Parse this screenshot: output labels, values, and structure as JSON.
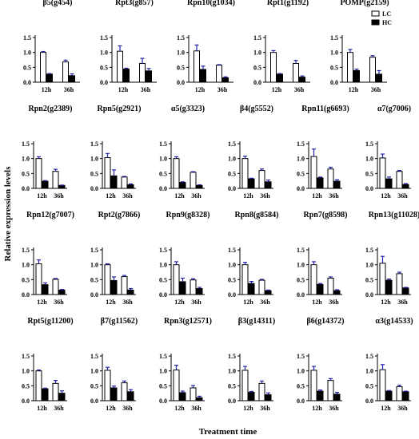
{
  "figure": {
    "ylabel": "Relative expression levels",
    "xlabel": "Treatment time",
    "legend": {
      "placement": "top-right",
      "items": [
        "LC",
        "HC"
      ]
    },
    "colors": {
      "LC": "#ffffff",
      "HC": "#000000",
      "error_bar": "#2222aa",
      "axis": "#000000"
    }
  },
  "chart_data": [
    {
      "type": "bar",
      "title": "β5(g454)",
      "categories": [
        "12h",
        "36h"
      ],
      "ylim": [
        0,
        1.5
      ],
      "yticks": [
        "0.0",
        "0.5",
        "1.0",
        "1.5"
      ],
      "series": [
        {
          "name": "LC",
          "values": [
            1.0,
            0.68
          ],
          "errors": [
            0.03,
            0.06
          ]
        },
        {
          "name": "HC",
          "values": [
            0.27,
            0.22
          ],
          "errors": [
            0.02,
            0.06
          ]
        }
      ]
    },
    {
      "type": "bar",
      "title": "Rpt3(g857)",
      "categories": [
        "12h",
        "36h"
      ],
      "ylim": [
        0,
        1.5
      ],
      "yticks": [
        "0.0",
        "0.5",
        "1.0",
        "1.5"
      ],
      "series": [
        {
          "name": "LC",
          "values": [
            1.04,
            0.63
          ],
          "errors": [
            0.18,
            0.17
          ]
        },
        {
          "name": "HC",
          "values": [
            0.44,
            0.38
          ],
          "errors": [
            0.03,
            0.08
          ]
        }
      ]
    },
    {
      "type": "bar",
      "title": "Rpn10(g1034)",
      "categories": [
        "12h",
        "36h"
      ],
      "ylim": [
        0,
        1.5
      ],
      "yticks": [
        "0.0",
        "0.5",
        "1.0",
        "1.5"
      ],
      "series": [
        {
          "name": "LC",
          "values": [
            1.05,
            0.57
          ],
          "errors": [
            0.2,
            0.02
          ]
        },
        {
          "name": "HC",
          "values": [
            0.43,
            0.15
          ],
          "errors": [
            0.11,
            0.03
          ]
        }
      ]
    },
    {
      "type": "bar",
      "title": "Rpt1(g1192)",
      "categories": [
        "12h",
        "36h"
      ],
      "ylim": [
        0,
        1.5
      ],
      "yticks": [
        "0.0",
        "0.5",
        "1.0",
        "1.5"
      ],
      "series": [
        {
          "name": "LC",
          "values": [
            1.0,
            0.63
          ],
          "errors": [
            0.06,
            0.1
          ]
        },
        {
          "name": "HC",
          "values": [
            0.27,
            0.17
          ],
          "errors": [
            0.02,
            0.04
          ]
        }
      ]
    },
    {
      "type": "bar",
      "title": "POMP(g2159)",
      "categories": [
        "12h",
        "36h"
      ],
      "ylim": [
        0,
        1.5
      ],
      "yticks": [
        "0.0",
        "0.5",
        "1.0",
        "1.5"
      ],
      "series": [
        {
          "name": "LC",
          "values": [
            1.0,
            0.84
          ],
          "errors": [
            0.1,
            0.05
          ]
        },
        {
          "name": "HC",
          "values": [
            0.39,
            0.27
          ],
          "errors": [
            0.05,
            0.12
          ]
        }
      ]
    },
    {
      "type": "bar",
      "title": "Rpn2(g2389)",
      "categories": [
        "12h",
        "36h"
      ],
      "ylim": [
        0,
        1.5
      ],
      "yticks": [
        "0.0",
        "0.5",
        "1.0",
        "1.5"
      ],
      "series": [
        {
          "name": "LC",
          "values": [
            1.0,
            0.57
          ],
          "errors": [
            0.06,
            0.07
          ]
        },
        {
          "name": "HC",
          "values": [
            0.24,
            0.1
          ],
          "errors": [
            0.02,
            0.01
          ]
        }
      ]
    },
    {
      "type": "bar",
      "title": "Rpn5(g2921)",
      "categories": [
        "12h",
        "36h"
      ],
      "ylim": [
        0,
        1.5
      ],
      "yticks": [
        "0.0",
        "0.5",
        "1.0",
        "1.5"
      ],
      "series": [
        {
          "name": "LC",
          "values": [
            1.03,
            0.38
          ],
          "errors": [
            0.14,
            0.02
          ]
        },
        {
          "name": "HC",
          "values": [
            0.42,
            0.12
          ],
          "errors": [
            0.2,
            0.03
          ]
        }
      ]
    },
    {
      "type": "bar",
      "title": "α5(g3323)",
      "categories": [
        "12h",
        "36h"
      ],
      "ylim": [
        0,
        1.5
      ],
      "yticks": [
        "0.0",
        "0.5",
        "1.0",
        "1.5"
      ],
      "series": [
        {
          "name": "LC",
          "values": [
            1.0,
            0.54
          ],
          "errors": [
            0.06,
            0.02
          ]
        },
        {
          "name": "HC",
          "values": [
            0.2,
            0.1
          ],
          "errors": [
            0.02,
            0.02
          ]
        }
      ]
    },
    {
      "type": "bar",
      "title": "β4(g5552)",
      "categories": [
        "12h",
        "36h"
      ],
      "ylim": [
        0,
        1.5
      ],
      "yticks": [
        "0.0",
        "0.5",
        "1.0",
        "1.5"
      ],
      "series": [
        {
          "name": "LC",
          "values": [
            1.0,
            0.6
          ],
          "errors": [
            0.08,
            0.05
          ]
        },
        {
          "name": "HC",
          "values": [
            0.32,
            0.22
          ],
          "errors": [
            0.02,
            0.06
          ]
        }
      ]
    },
    {
      "type": "bar",
      "title": "Rpn11(g6693)",
      "categories": [
        "12h",
        "36h"
      ],
      "ylim": [
        0,
        1.5
      ],
      "yticks": [
        "0.0",
        "0.5",
        "1.0",
        "1.5"
      ],
      "series": [
        {
          "name": "LC",
          "values": [
            1.07,
            0.65
          ],
          "errors": [
            0.25,
            0.06
          ]
        },
        {
          "name": "HC",
          "values": [
            0.35,
            0.24
          ],
          "errors": [
            0.03,
            0.05
          ]
        }
      ]
    },
    {
      "type": "bar",
      "title": "α7(g7006)",
      "categories": [
        "12h",
        "36h"
      ],
      "ylim": [
        0,
        1.5
      ],
      "yticks": [
        "0.0",
        "0.5",
        "1.0",
        "1.5"
      ],
      "series": [
        {
          "name": "LC",
          "values": [
            1.02,
            0.57
          ],
          "errors": [
            0.13,
            0.03
          ]
        },
        {
          "name": "HC",
          "values": [
            0.32,
            0.13
          ],
          "errors": [
            0.06,
            0.03
          ]
        }
      ]
    },
    {
      "type": "bar",
      "title": "Rpn12(g7007)",
      "categories": [
        "12h",
        "36h"
      ],
      "ylim": [
        0,
        1.5
      ],
      "yticks": [
        "0.0",
        "0.5",
        "1.0",
        "1.5"
      ],
      "series": [
        {
          "name": "LC",
          "values": [
            1.03,
            0.51
          ],
          "errors": [
            0.13,
            0.03
          ]
        },
        {
          "name": "HC",
          "values": [
            0.33,
            0.15
          ],
          "errors": [
            0.06,
            0.02
          ]
        }
      ]
    },
    {
      "type": "bar",
      "title": "Rpt2(g7866)",
      "categories": [
        "12h",
        "36h"
      ],
      "ylim": [
        0,
        1.5
      ],
      "yticks": [
        "0.0",
        "0.5",
        "1.0",
        "1.5"
      ],
      "series": [
        {
          "name": "LC",
          "values": [
            1.0,
            0.6
          ],
          "errors": [
            0.03,
            0.04
          ]
        },
        {
          "name": "HC",
          "values": [
            0.47,
            0.15
          ],
          "errors": [
            0.12,
            0.05
          ]
        }
      ]
    },
    {
      "type": "bar",
      "title": "Rpn9(g8328)",
      "categories": [
        "12h",
        "36h"
      ],
      "ylim": [
        0,
        1.5
      ],
      "yticks": [
        "0.0",
        "0.5",
        "1.0",
        "1.5"
      ],
      "series": [
        {
          "name": "LC",
          "values": [
            1.0,
            0.49
          ],
          "errors": [
            0.1,
            0.04
          ]
        },
        {
          "name": "HC",
          "values": [
            0.43,
            0.2
          ],
          "errors": [
            0.12,
            0.04
          ]
        }
      ]
    },
    {
      "type": "bar",
      "title": "Rpn8(g8584)",
      "categories": [
        "12h",
        "36h"
      ],
      "ylim": [
        0,
        1.5
      ],
      "yticks": [
        "0.0",
        "0.5",
        "1.0",
        "1.5"
      ],
      "series": [
        {
          "name": "LC",
          "values": [
            1.0,
            0.48
          ],
          "errors": [
            0.08,
            0.03
          ]
        },
        {
          "name": "HC",
          "values": [
            0.37,
            0.13
          ],
          "errors": [
            0.07,
            0.02
          ]
        }
      ]
    },
    {
      "type": "bar",
      "title": "Rpn7(g8598)",
      "categories": [
        "12h",
        "36h"
      ],
      "ylim": [
        0,
        1.5
      ],
      "yticks": [
        "0.0",
        "0.5",
        "1.0",
        "1.5"
      ],
      "series": [
        {
          "name": "LC",
          "values": [
            1.0,
            0.55
          ],
          "errors": [
            0.1,
            0.04
          ]
        },
        {
          "name": "HC",
          "values": [
            0.34,
            0.13
          ],
          "errors": [
            0.03,
            0.03
          ]
        }
      ]
    },
    {
      "type": "bar",
      "title": "Rpn13(g11028)",
      "categories": [
        "12h",
        "36h"
      ],
      "ylim": [
        0,
        1.5
      ],
      "yticks": [
        "0.0",
        "0.5",
        "1.0",
        "1.5"
      ],
      "series": [
        {
          "name": "LC",
          "values": [
            1.05,
            0.7
          ],
          "errors": [
            0.23,
            0.05
          ]
        },
        {
          "name": "HC",
          "values": [
            0.48,
            0.22
          ],
          "errors": [
            0.04,
            0.02
          ]
        }
      ]
    },
    {
      "type": "bar",
      "title": "Rpt5(g11200)",
      "categories": [
        "12h",
        "36h"
      ],
      "ylim": [
        0,
        1.5
      ],
      "yticks": [
        "0.0",
        "0.5",
        "1.0",
        "1.5"
      ],
      "series": [
        {
          "name": "LC",
          "values": [
            1.0,
            0.58
          ],
          "errors": [
            0.03,
            0.1
          ]
        },
        {
          "name": "HC",
          "values": [
            0.4,
            0.25
          ],
          "errors": [
            0.02,
            0.08
          ]
        }
      ]
    },
    {
      "type": "bar",
      "title": "β7(g11562)",
      "categories": [
        "12h",
        "36h"
      ],
      "ylim": [
        0,
        1.5
      ],
      "yticks": [
        "0.0",
        "0.5",
        "1.0",
        "1.5"
      ],
      "series": [
        {
          "name": "LC",
          "values": [
            1.02,
            0.6
          ],
          "errors": [
            0.1,
            0.06
          ]
        },
        {
          "name": "HC",
          "values": [
            0.43,
            0.3
          ],
          "errors": [
            0.06,
            0.07
          ]
        }
      ]
    },
    {
      "type": "bar",
      "title": "Rpn3(g12571)",
      "categories": [
        "12h",
        "36h"
      ],
      "ylim": [
        0,
        1.5
      ],
      "yticks": [
        "0.0",
        "0.5",
        "1.0",
        "1.5"
      ],
      "series": [
        {
          "name": "LC",
          "values": [
            1.03,
            0.43
          ],
          "errors": [
            0.16,
            0.08
          ]
        },
        {
          "name": "HC",
          "values": [
            0.27,
            0.1
          ],
          "errors": [
            0.05,
            0.05
          ]
        }
      ]
    },
    {
      "type": "bar",
      "title": "β3(g14311)",
      "categories": [
        "12h",
        "36h"
      ],
      "ylim": [
        0,
        1.5
      ],
      "yticks": [
        "0.0",
        "0.5",
        "1.0",
        "1.5"
      ],
      "series": [
        {
          "name": "LC",
          "values": [
            1.02,
            0.58
          ],
          "errors": [
            0.13,
            0.08
          ]
        },
        {
          "name": "HC",
          "values": [
            0.28,
            0.2
          ],
          "errors": [
            0.03,
            0.06
          ]
        }
      ]
    },
    {
      "type": "bar",
      "title": "β6(g14372)",
      "categories": [
        "12h",
        "36h"
      ],
      "ylim": [
        0,
        1.5
      ],
      "yticks": [
        "0.0",
        "0.5",
        "1.0",
        "1.5"
      ],
      "series": [
        {
          "name": "LC",
          "values": [
            1.02,
            0.68
          ],
          "errors": [
            0.13,
            0.06
          ]
        },
        {
          "name": "HC",
          "values": [
            0.32,
            0.22
          ],
          "errors": [
            0.04,
            0.06
          ]
        }
      ]
    },
    {
      "type": "bar",
      "title": "α3(g14533)",
      "categories": [
        "12h",
        "36h"
      ],
      "ylim": [
        0,
        1.5
      ],
      "yticks": [
        "0.0",
        "0.5",
        "1.0",
        "1.5"
      ],
      "series": [
        {
          "name": "LC",
          "values": [
            1.04,
            0.47
          ],
          "errors": [
            0.17,
            0.05
          ]
        },
        {
          "name": "HC",
          "values": [
            0.32,
            0.3
          ],
          "errors": [
            0.02,
            0.02
          ]
        }
      ]
    }
  ]
}
